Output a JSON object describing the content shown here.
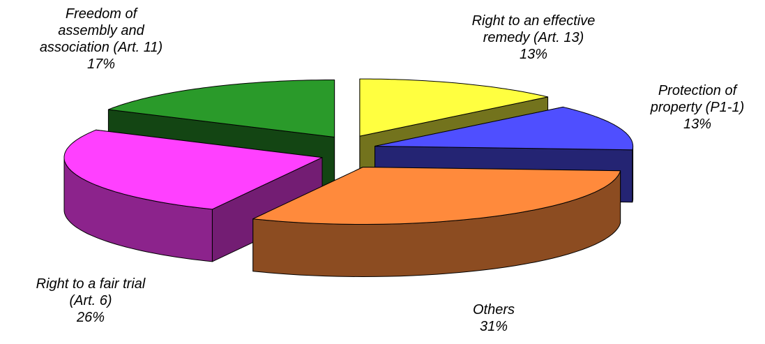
{
  "chart_data": {
    "type": "pie",
    "categories": [
      "Right to an effective\nremedy (Art. 13)",
      "Protection of\nproperty (P1-1)",
      "Others",
      "Right to a fair trial\n(Art. 6)",
      "Freedom of\nassembly and\nassociation (Art. 11)"
    ],
    "values": [
      13,
      13,
      31,
      26,
      17
    ],
    "value_labels": [
      "13%",
      "13%",
      "31%",
      "26%",
      "17%"
    ],
    "colors": [
      "#ffff40",
      "#4f4fff",
      "#ff8a3c",
      "#ff40ff",
      "#2a9a2a"
    ]
  }
}
